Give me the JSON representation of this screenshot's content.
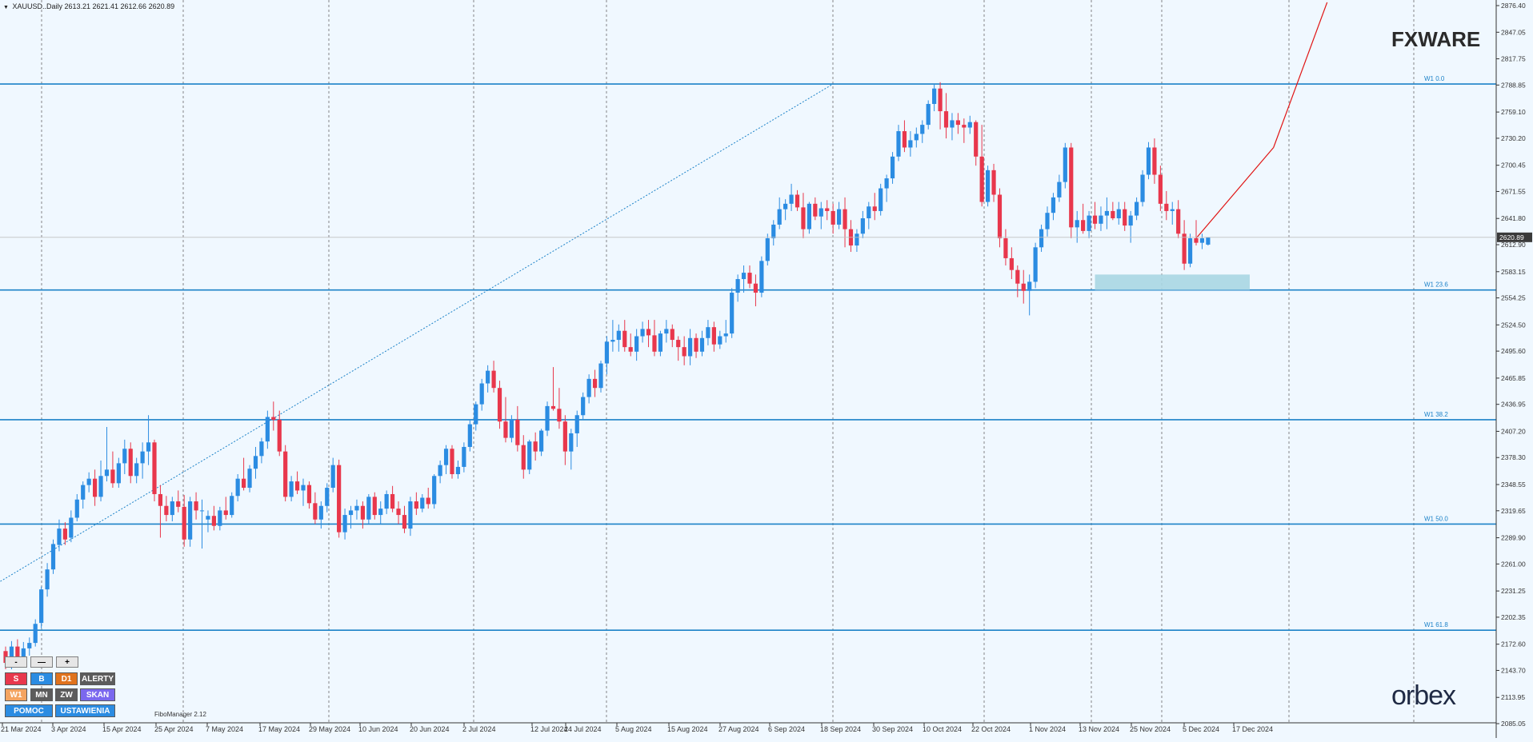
{
  "header": {
    "symbol_info": "XAUUSD..Daily  2613.21 2621.41 2612.66 2620.89"
  },
  "current_price_label": "2620.89",
  "logos": {
    "top": "FXWARE",
    "bottom": "orbex"
  },
  "indicator_label": "FiboManager 2.12",
  "controls": {
    "zoom": [
      "-",
      "—",
      "+"
    ],
    "row1": [
      "S",
      "B",
      "D1",
      "ALERTY"
    ],
    "row2": [
      "W1",
      "MN",
      "ZW",
      "SKAN"
    ],
    "row3": [
      "POMOC",
      "USTAWIENIA"
    ]
  },
  "colors": {
    "background": "#f0f8ff",
    "bull": "#2b8ce2",
    "bear": "#e8374c",
    "fibo": "#1c82c8",
    "trend": "#e01515",
    "zone": "#a9d6e3"
  },
  "chart_data": {
    "type": "candlestick",
    "ylim": [
      2085.95,
      2876.4
    ],
    "yticks": [
      "2876.40",
      "2847.05",
      "2817.75",
      "2788.85",
      "2759.10",
      "2730.20",
      "2700.45",
      "2671.55",
      "2641.80",
      "2612.90",
      "2583.15",
      "2554.25",
      "2524.50",
      "2495.60",
      "2465.85",
      "2436.95",
      "2407.20",
      "2378.30",
      "2348.55",
      "2319.65",
      "2289.90",
      "2261.00",
      "2231.25",
      "2202.35",
      "2172.60",
      "2143.70",
      "2113.95",
      "2085.05"
    ],
    "xticks": [
      "21 Mar 2024",
      "3 Apr 2024",
      "15 Apr 2024",
      "25 Apr 2024",
      "7 May 2024",
      "17 May 2024",
      "29 May 2024",
      "10 Jun 2024",
      "20 Jun 2024",
      "2 Jul 2024",
      "12 Jul 2024",
      "24 Jul 2024",
      "5 Aug 2024",
      "15 Aug 2024",
      "27 Aug 2024",
      "6 Sep 2024",
      "18 Sep 2024",
      "30 Sep 2024",
      "10 Oct 2024",
      "22 Oct 2024",
      "1 Nov 2024",
      "13 Nov 2024",
      "25 Nov 2024",
      "5 Dec 2024",
      "17 Dec 2024"
    ],
    "fibo_levels": [
      {
        "label": "W1 0.0",
        "value": 2790.0
      },
      {
        "label": "W1 23.6",
        "value": 2563.0
      },
      {
        "label": "W1 38.2",
        "value": 2420.0
      },
      {
        "label": "W1 50.0",
        "value": 2305.0
      },
      {
        "label": "W1 61.8",
        "value": 2188.0
      }
    ],
    "zone": {
      "from_index": 183,
      "to_index": 209,
      "low": 2563,
      "high": 2580
    },
    "candles": [
      [
        2165,
        2170,
        2145,
        2152
      ],
      [
        2155,
        2176,
        2145,
        2170
      ],
      [
        2170,
        2178,
        2150,
        2158
      ],
      [
        2158,
        2175,
        2155,
        2168
      ],
      [
        2168,
        2180,
        2160,
        2174
      ],
      [
        2174,
        2200,
        2170,
        2195
      ],
      [
        2196,
        2236,
        2190,
        2233
      ],
      [
        2233,
        2262,
        2225,
        2255
      ],
      [
        2255,
        2288,
        2250,
        2283
      ],
      [
        2282,
        2310,
        2275,
        2300
      ],
      [
        2300,
        2307,
        2282,
        2288
      ],
      [
        2290,
        2320,
        2285,
        2312
      ],
      [
        2312,
        2338,
        2308,
        2332
      ],
      [
        2332,
        2352,
        2322,
        2348
      ],
      [
        2348,
        2362,
        2340,
        2355
      ],
      [
        2355,
        2365,
        2325,
        2335
      ],
      [
        2335,
        2375,
        2330,
        2358
      ],
      [
        2358,
        2412,
        2352,
        2365
      ],
      [
        2365,
        2385,
        2345,
        2350
      ],
      [
        2350,
        2378,
        2345,
        2372
      ],
      [
        2372,
        2398,
        2360,
        2388
      ],
      [
        2388,
        2395,
        2350,
        2358
      ],
      [
        2358,
        2378,
        2350,
        2372
      ],
      [
        2372,
        2395,
        2355,
        2385
      ],
      [
        2385,
        2425,
        2370,
        2395
      ],
      [
        2395,
        2398,
        2330,
        2338
      ],
      [
        2338,
        2348,
        2290,
        2325
      ],
      [
        2325,
        2336,
        2308,
        2315
      ],
      [
        2315,
        2335,
        2308,
        2330
      ],
      [
        2330,
        2342,
        2318,
        2324
      ],
      [
        2324,
        2337,
        2280,
        2288
      ],
      [
        2288,
        2335,
        2280,
        2330
      ],
      [
        2330,
        2340,
        2310,
        2320
      ],
      [
        2320,
        2332,
        2278,
        2320
      ],
      [
        2310,
        2320,
        2296,
        2314
      ],
      [
        2314,
        2325,
        2298,
        2303
      ],
      [
        2303,
        2324,
        2298,
        2320
      ],
      [
        2320,
        2335,
        2310,
        2315
      ],
      [
        2315,
        2340,
        2312,
        2336
      ],
      [
        2336,
        2360,
        2330,
        2355
      ],
      [
        2355,
        2378,
        2342,
        2345
      ],
      [
        2345,
        2370,
        2340,
        2366
      ],
      [
        2366,
        2390,
        2355,
        2380
      ],
      [
        2380,
        2400,
        2372,
        2396
      ],
      [
        2396,
        2430,
        2388,
        2423
      ],
      [
        2423,
        2440,
        2408,
        2420
      ],
      [
        2420,
        2430,
        2380,
        2385
      ],
      [
        2385,
        2392,
        2330,
        2335
      ],
      [
        2335,
        2358,
        2330,
        2352
      ],
      [
        2352,
        2363,
        2338,
        2342
      ],
      [
        2342,
        2355,
        2325,
        2348
      ],
      [
        2348,
        2352,
        2322,
        2328
      ],
      [
        2328,
        2340,
        2305,
        2310
      ],
      [
        2310,
        2330,
        2300,
        2325
      ],
      [
        2325,
        2350,
        2318,
        2345
      ],
      [
        2345,
        2378,
        2340,
        2370
      ],
      [
        2370,
        2376,
        2290,
        2296
      ],
      [
        2296,
        2322,
        2288,
        2315
      ],
      [
        2315,
        2325,
        2300,
        2320
      ],
      [
        2320,
        2332,
        2310,
        2325
      ],
      [
        2325,
        2330,
        2300,
        2310
      ],
      [
        2310,
        2338,
        2305,
        2335
      ],
      [
        2335,
        2340,
        2310,
        2315
      ],
      [
        2315,
        2330,
        2305,
        2322
      ],
      [
        2322,
        2342,
        2316,
        2338
      ],
      [
        2338,
        2347,
        2318,
        2322
      ],
      [
        2322,
        2330,
        2305,
        2315
      ],
      [
        2315,
        2325,
        2295,
        2300
      ],
      [
        2300,
        2335,
        2292,
        2330
      ],
      [
        2330,
        2340,
        2315,
        2322
      ],
      [
        2322,
        2338,
        2318,
        2334
      ],
      [
        2334,
        2345,
        2322,
        2327
      ],
      [
        2327,
        2360,
        2322,
        2358
      ],
      [
        2358,
        2375,
        2350,
        2370
      ],
      [
        2370,
        2392,
        2360,
        2388
      ],
      [
        2388,
        2392,
        2355,
        2360
      ],
      [
        2360,
        2375,
        2355,
        2368
      ],
      [
        2368,
        2395,
        2362,
        2390
      ],
      [
        2390,
        2420,
        2385,
        2415
      ],
      [
        2415,
        2440,
        2408,
        2437
      ],
      [
        2437,
        2465,
        2430,
        2460
      ],
      [
        2460,
        2480,
        2450,
        2474
      ],
      [
        2474,
        2485,
        2450,
        2455
      ],
      [
        2455,
        2463,
        2410,
        2418
      ],
      [
        2418,
        2445,
        2395,
        2400
      ],
      [
        2400,
        2425,
        2395,
        2420
      ],
      [
        2420,
        2435,
        2385,
        2392
      ],
      [
        2392,
        2403,
        2355,
        2365
      ],
      [
        2365,
        2398,
        2360,
        2396
      ],
      [
        2396,
        2406,
        2375,
        2385
      ],
      [
        2385,
        2410,
        2380,
        2408
      ],
      [
        2408,
        2440,
        2402,
        2435
      ],
      [
        2435,
        2478,
        2430,
        2432
      ],
      [
        2432,
        2455,
        2410,
        2418
      ],
      [
        2418,
        2425,
        2370,
        2385
      ],
      [
        2385,
        2410,
        2365,
        2405
      ],
      [
        2405,
        2430,
        2390,
        2425
      ],
      [
        2425,
        2450,
        2420,
        2445
      ],
      [
        2445,
        2470,
        2438,
        2465
      ],
      [
        2465,
        2475,
        2445,
        2455
      ],
      [
        2455,
        2485,
        2450,
        2482
      ],
      [
        2482,
        2512,
        2470,
        2506
      ],
      [
        2506,
        2530,
        2495,
        2508
      ],
      [
        2508,
        2525,
        2495,
        2518
      ],
      [
        2518,
        2530,
        2495,
        2500
      ],
      [
        2500,
        2515,
        2490,
        2495
      ],
      [
        2495,
        2520,
        2485,
        2512
      ],
      [
        2512,
        2528,
        2505,
        2520
      ],
      [
        2520,
        2530,
        2500,
        2513
      ],
      [
        2513,
        2530,
        2490,
        2495
      ],
      [
        2495,
        2518,
        2490,
        2515
      ],
      [
        2515,
        2530,
        2505,
        2520
      ],
      [
        2520,
        2525,
        2500,
        2508
      ],
      [
        2508,
        2512,
        2485,
        2500
      ],
      [
        2500,
        2512,
        2480,
        2490
      ],
      [
        2490,
        2520,
        2480,
        2510
      ],
      [
        2510,
        2515,
        2488,
        2495
      ],
      [
        2495,
        2518,
        2490,
        2510
      ],
      [
        2510,
        2530,
        2502,
        2522
      ],
      [
        2522,
        2528,
        2495,
        2503
      ],
      [
        2503,
        2518,
        2498,
        2512
      ],
      [
        2512,
        2530,
        2505,
        2515
      ],
      [
        2515,
        2565,
        2510,
        2560
      ],
      [
        2560,
        2580,
        2550,
        2575
      ],
      [
        2575,
        2590,
        2560,
        2582
      ],
      [
        2582,
        2590,
        2565,
        2570
      ],
      [
        2570,
        2580,
        2545,
        2560
      ],
      [
        2560,
        2600,
        2555,
        2595
      ],
      [
        2595,
        2625,
        2590,
        2620
      ],
      [
        2620,
        2640,
        2612,
        2635
      ],
      [
        2635,
        2665,
        2630,
        2652
      ],
      [
        2652,
        2663,
        2640,
        2658
      ],
      [
        2658,
        2680,
        2650,
        2668
      ],
      [
        2668,
        2673,
        2650,
        2654
      ],
      [
        2654,
        2670,
        2620,
        2630
      ],
      [
        2630,
        2660,
        2625,
        2658
      ],
      [
        2658,
        2665,
        2640,
        2644
      ],
      [
        2644,
        2660,
        2630,
        2653
      ],
      [
        2653,
        2662,
        2640,
        2650
      ],
      [
        2650,
        2658,
        2625,
        2635
      ],
      [
        2635,
        2660,
        2630,
        2652
      ],
      [
        2652,
        2665,
        2610,
        2630
      ],
      [
        2630,
        2640,
        2605,
        2612
      ],
      [
        2612,
        2630,
        2605,
        2625
      ],
      [
        2625,
        2650,
        2620,
        2642
      ],
      [
        2642,
        2660,
        2630,
        2655
      ],
      [
        2655,
        2670,
        2640,
        2650
      ],
      [
        2650,
        2680,
        2645,
        2675
      ],
      [
        2675,
        2690,
        2660,
        2686
      ],
      [
        2686,
        2715,
        2680,
        2710
      ],
      [
        2710,
        2745,
        2705,
        2738
      ],
      [
        2738,
        2750,
        2715,
        2720
      ],
      [
        2720,
        2738,
        2710,
        2728
      ],
      [
        2728,
        2742,
        2720,
        2735
      ],
      [
        2735,
        2750,
        2725,
        2745
      ],
      [
        2745,
        2772,
        2740,
        2768
      ],
      [
        2768,
        2790,
        2760,
        2785
      ],
      [
        2785,
        2792,
        2740,
        2760
      ],
      [
        2760,
        2780,
        2730,
        2742
      ],
      [
        2742,
        2758,
        2728,
        2750
      ],
      [
        2750,
        2758,
        2735,
        2745
      ],
      [
        2745,
        2752,
        2725,
        2742
      ],
      [
        2742,
        2755,
        2735,
        2748
      ],
      [
        2748,
        2750,
        2700,
        2710
      ],
      [
        2710,
        2745,
        2655,
        2660
      ],
      [
        2660,
        2700,
        2655,
        2695
      ],
      [
        2695,
        2702,
        2660,
        2668
      ],
      [
        2668,
        2675,
        2610,
        2620
      ],
      [
        2620,
        2630,
        2590,
        2598
      ],
      [
        2598,
        2610,
        2575,
        2585
      ],
      [
        2585,
        2590,
        2555,
        2570
      ],
      [
        2570,
        2585,
        2548,
        2562
      ],
      [
        2562,
        2580,
        2535,
        2572
      ],
      [
        2572,
        2615,
        2565,
        2610
      ],
      [
        2610,
        2635,
        2605,
        2630
      ],
      [
        2630,
        2655,
        2622,
        2648
      ],
      [
        2648,
        2670,
        2640,
        2665
      ],
      [
        2665,
        2690,
        2660,
        2682
      ],
      [
        2682,
        2725,
        2675,
        2720
      ],
      [
        2720,
        2725,
        2620,
        2632
      ],
      [
        2632,
        2650,
        2615,
        2640
      ],
      [
        2640,
        2658,
        2625,
        2628
      ],
      [
        2628,
        2650,
        2620,
        2645
      ],
      [
        2645,
        2660,
        2630,
        2636
      ],
      [
        2636,
        2655,
        2628,
        2645
      ],
      [
        2645,
        2665,
        2630,
        2650
      ],
      [
        2650,
        2660,
        2640,
        2642
      ],
      [
        2642,
        2660,
        2635,
        2652
      ],
      [
        2652,
        2660,
        2628,
        2634
      ],
      [
        2634,
        2650,
        2615,
        2645
      ],
      [
        2645,
        2665,
        2640,
        2660
      ],
      [
        2660,
        2695,
        2655,
        2690
      ],
      [
        2690,
        2726,
        2685,
        2720
      ],
      [
        2720,
        2730,
        2680,
        2690
      ],
      [
        2690,
        2700,
        2650,
        2658
      ],
      [
        2658,
        2672,
        2640,
        2650
      ],
      [
        2650,
        2660,
        2635,
        2652
      ],
      [
        2652,
        2662,
        2620,
        2625
      ],
      [
        2625,
        2640,
        2585,
        2592
      ],
      [
        2592,
        2625,
        2588,
        2620
      ],
      [
        2620,
        2640,
        2612,
        2615
      ],
      [
        2615,
        2625,
        2608,
        2620
      ],
      [
        2613,
        2621,
        2612,
        2621
      ]
    ]
  }
}
